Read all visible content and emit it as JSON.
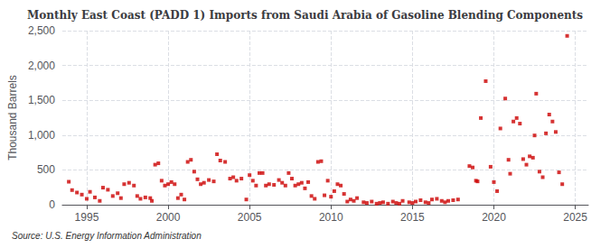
{
  "chart_data": {
    "type": "scatter",
    "title": "Monthly East Coast (PADD 1) Imports from Saudi Arabia of Gasoline Blending Components",
    "ylabel": "Thousand Barrels",
    "source": "Source: U.S. Energy Information Administration",
    "color": "#cc0000",
    "marker": "square",
    "grid": true,
    "xlim": [
      1993.5,
      2025.8
    ],
    "xticks": [
      1995,
      2000,
      2005,
      2010,
      2015,
      2020,
      2025
    ],
    "ylim": [
      0,
      2500
    ],
    "yticks": [
      0,
      500,
      {
        "value": 1000,
        "label": "1,000"
      },
      {
        "value": 1500,
        "label": "1,500"
      },
      {
        "value": 2000,
        "label": "2,000"
      },
      {
        "value": 2500,
        "label": "2,500"
      }
    ],
    "x": [
      1993.9,
      1994.1,
      1994.4,
      1994.7,
      1995.0,
      1995.2,
      1995.5,
      1995.8,
      1996.0,
      1996.3,
      1996.6,
      1996.9,
      1997.1,
      1997.3,
      1997.6,
      1997.9,
      1998.1,
      1998.3,
      1998.6,
      1998.9,
      1999.0,
      1999.2,
      1999.4,
      1999.6,
      1999.8,
      2000.0,
      2000.2,
      2000.4,
      2000.6,
      2000.8,
      2001.0,
      2001.2,
      2001.4,
      2001.6,
      2001.8,
      2002.0,
      2002.2,
      2002.5,
      2002.8,
      2003.0,
      2003.2,
      2003.5,
      2003.8,
      2004.0,
      2004.2,
      2004.5,
      2004.8,
      2005.0,
      2005.2,
      2005.4,
      2005.6,
      2005.8,
      2006.0,
      2006.2,
      2006.5,
      2006.8,
      2007.0,
      2007.2,
      2007.4,
      2007.6,
      2007.8,
      2008.0,
      2008.2,
      2008.4,
      2008.6,
      2008.8,
      2009.0,
      2009.2,
      2009.4,
      2009.6,
      2009.8,
      2010.0,
      2010.2,
      2010.4,
      2010.6,
      2010.8,
      2011.0,
      2011.2,
      2011.4,
      2011.6,
      2012.0,
      2012.2,
      2012.5,
      2012.8,
      2013.0,
      2013.2,
      2013.5,
      2013.8,
      2014.0,
      2014.2,
      2014.4,
      2014.8,
      2015.0,
      2015.2,
      2015.5,
      2015.8,
      2016.0,
      2016.2,
      2016.5,
      2016.8,
      2017.0,
      2017.2,
      2017.5,
      2017.8,
      2018.5,
      2018.7,
      2018.9,
      2019.0,
      2019.2,
      2019.5,
      2019.8,
      2020.0,
      2020.2,
      2020.4,
      2020.7,
      2020.9,
      2021.0,
      2021.2,
      2021.4,
      2021.6,
      2021.8,
      2022.0,
      2022.2,
      2022.4,
      2022.5,
      2022.6,
      2022.8,
      2023.0,
      2023.2,
      2023.4,
      2023.6,
      2023.8,
      2024.0,
      2024.2,
      2024.5
    ],
    "values": [
      330,
      210,
      175,
      145,
      85,
      185,
      105,
      55,
      245,
      215,
      125,
      165,
      95,
      295,
      315,
      275,
      125,
      85,
      105,
      95,
      55,
      575,
      595,
      345,
      275,
      295,
      325,
      295,
      95,
      145,
      75,
      615,
      645,
      475,
      365,
      295,
      315,
      355,
      335,
      725,
      635,
      615,
      375,
      395,
      345,
      375,
      75,
      425,
      345,
      275,
      455,
      455,
      275,
      295,
      285,
      355,
      315,
      275,
      455,
      375,
      275,
      295,
      315,
      235,
      325,
      125,
      85,
      615,
      625,
      135,
      345,
      115,
      195,
      295,
      275,
      155,
      45,
      75,
      55,
      95,
      35,
      25,
      45,
      15,
      25,
      35,
      15,
      45,
      25,
      15,
      55,
      35,
      25,
      45,
      65,
      35,
      25,
      75,
      85,
      55,
      35,
      55,
      65,
      75,
      555,
      535,
      345,
      335,
      1245,
      1775,
      545,
      325,
      195,
      1095,
      1525,
      645,
      445,
      1195,
      1245,
      1165,
      655,
      575,
      695,
      675,
      995,
      1595,
      475,
      395,
      1025,
      1295,
      1195,
      1045,
      465,
      295,
      2425
    ]
  }
}
